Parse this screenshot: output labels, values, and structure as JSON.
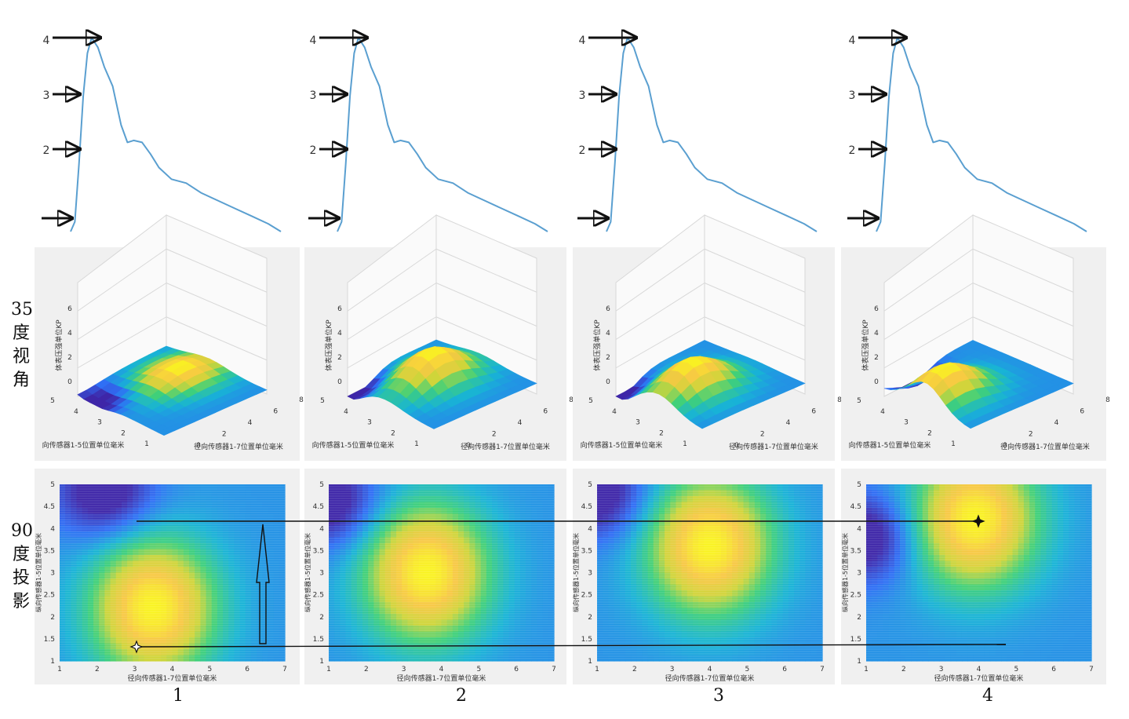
{
  "row_labels": {
    "view35": [
      "35",
      "度",
      "视",
      "角"
    ],
    "view90": [
      "90",
      "度",
      "投",
      "影"
    ]
  },
  "column_numbers": [
    "1",
    "2",
    "3",
    "4"
  ],
  "marker_levels": [
    "4",
    "3",
    "2"
  ],
  "axis_text": {
    "surface_xlabel": "径向传感器1-7位置单位毫米",
    "surface_ylabel": "向传感器1-5位置单位毫米",
    "surface_zlabel": "体表压强单位KP",
    "heat_xlabel": "径向传感器1-7位置单位毫米",
    "heat_ylabel": "纵向传感器1-5位置单位毫米"
  },
  "colors": {
    "waveform": "#5a9fd0",
    "panel_bg": "#f0f0f0",
    "grid": "#d8d8d8",
    "colormap": [
      "#3e26a8",
      "#2f6ef5",
      "#18b3d6",
      "#3fd07a",
      "#cfd53a",
      "#f7c844",
      "#f9f420"
    ]
  },
  "chart_data": [
    {
      "type": "line",
      "title": "",
      "xlabel": "",
      "ylabel": "",
      "x": [
        0,
        0.02,
        0.04,
        0.06,
        0.08,
        0.1,
        0.13,
        0.16,
        0.2,
        0.24,
        0.27,
        0.3,
        0.34,
        0.38,
        0.42,
        0.48,
        0.55,
        0.62,
        0.7,
        0.78,
        0.86,
        0.94,
        1.0
      ],
      "values": [
        0.0,
        0.05,
        0.35,
        0.7,
        0.92,
        1.0,
        0.95,
        0.85,
        0.75,
        0.55,
        0.46,
        0.47,
        0.46,
        0.4,
        0.33,
        0.27,
        0.25,
        0.2,
        0.16,
        0.12,
        0.08,
        0.04,
        0.0
      ],
      "marker_levels": [
        "4",
        "3",
        "2"
      ],
      "note_series": "same pulse waveform repeated in columns 1-4"
    },
    {
      "type": "heatmap",
      "x_ticks": [
        1,
        2,
        3,
        4,
        5,
        6,
        7
      ],
      "y_ticks": [
        1,
        1.5,
        2,
        2.5,
        3,
        3.5,
        4,
        4.5,
        5
      ],
      "surface_x_ticks": [
        0,
        2,
        4,
        6,
        8
      ],
      "surface_y_ticks": [
        1,
        2,
        3,
        4,
        5
      ],
      "surface_z_ticks": [
        0,
        2,
        4,
        6
      ],
      "xlim": [
        1,
        7
      ],
      "ylim": [
        1,
        5
      ],
      "panels": [
        {
          "column": "1",
          "peak_x": 3.5,
          "peak_y": 2.2,
          "peak_value": 1.0,
          "low_x": 2.2,
          "low_y": 4.8
        },
        {
          "column": "2",
          "peak_x": 3.6,
          "peak_y": 3.0,
          "peak_value": 1.0,
          "low_x": 1.0,
          "low_y": 4.6
        },
        {
          "column": "3",
          "peak_x": 4.0,
          "peak_y": 3.6,
          "peak_value": 1.0,
          "low_x": 1.0,
          "low_y": 4.8
        },
        {
          "column": "4",
          "peak_x": 3.9,
          "peak_y": 4.2,
          "peak_value": 1.0,
          "low_x": 1.0,
          "low_y": 3.8
        }
      ]
    }
  ]
}
